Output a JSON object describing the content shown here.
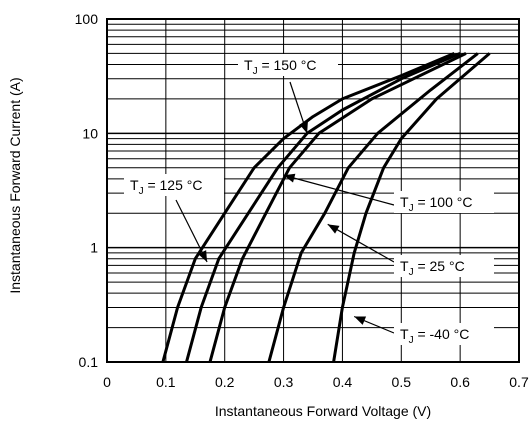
{
  "chart_data": {
    "type": "line",
    "title": "",
    "xlabel": "Instantaneous Forward Voltage (V)",
    "ylabel": "Instantaneous Forward Current (A)",
    "xlim": [
      0,
      0.7
    ],
    "ylim": [
      0.1,
      100
    ],
    "y_scale": "log",
    "grid": true,
    "x_ticks": [
      "0",
      "0.1",
      "0.2",
      "0.3",
      "0.4",
      "0.5",
      "0.6",
      "0.7"
    ],
    "y_ticks": [
      "0.1",
      "1",
      "10",
      "100"
    ],
    "series": [
      {
        "name": "T_J = 150 °C",
        "points": [
          [
            0.095,
            0.1
          ],
          [
            0.12,
            0.3
          ],
          [
            0.15,
            0.8
          ],
          [
            0.2,
            2
          ],
          [
            0.25,
            5
          ],
          [
            0.3,
            9
          ],
          [
            0.35,
            14
          ],
          [
            0.4,
            20
          ],
          [
            0.5,
            32
          ],
          [
            0.59,
            50
          ]
        ]
      },
      {
        "name": "T_J = 125 °C",
        "points": [
          [
            0.135,
            0.1
          ],
          [
            0.16,
            0.3
          ],
          [
            0.19,
            0.8
          ],
          [
            0.24,
            2
          ],
          [
            0.29,
            5
          ],
          [
            0.34,
            10
          ],
          [
            0.4,
            16
          ],
          [
            0.5,
            30
          ],
          [
            0.6,
            50
          ]
        ]
      },
      {
        "name": "T_J = 100 °C",
        "points": [
          [
            0.175,
            0.1
          ],
          [
            0.2,
            0.3
          ],
          [
            0.23,
            0.8
          ],
          [
            0.27,
            2
          ],
          [
            0.31,
            5
          ],
          [
            0.36,
            10
          ],
          [
            0.45,
            20
          ],
          [
            0.61,
            50
          ]
        ]
      },
      {
        "name": "T_J = 25 °C",
        "points": [
          [
            0.275,
            0.1
          ],
          [
            0.3,
            0.3
          ],
          [
            0.33,
            0.9
          ],
          [
            0.37,
            2
          ],
          [
            0.41,
            5
          ],
          [
            0.46,
            10
          ],
          [
            0.55,
            24
          ],
          [
            0.63,
            50
          ]
        ]
      },
      {
        "name": "T_J = -40 °C",
        "points": [
          [
            0.385,
            0.1
          ],
          [
            0.4,
            0.3
          ],
          [
            0.42,
            0.9
          ],
          [
            0.44,
            2
          ],
          [
            0.47,
            5
          ],
          [
            0.5,
            9
          ],
          [
            0.56,
            20
          ],
          [
            0.65,
            50
          ]
        ]
      }
    ],
    "annotations": [
      {
        "label": "T",
        "sub": "J",
        "rest": " = 150 °C",
        "series": 0,
        "target": [
          0.34,
          10
        ]
      },
      {
        "label": "T",
        "sub": "J",
        "rest": " = 125 °C",
        "series": 1,
        "target": [
          0.17,
          0.75
        ]
      },
      {
        "label": "T",
        "sub": "J",
        "rest": " = 100 °C",
        "series": 2,
        "target": [
          0.3,
          4.3
        ]
      },
      {
        "label": "T",
        "sub": "J",
        "rest": " = 25 °C",
        "series": 3,
        "target": [
          0.375,
          1.6
        ]
      },
      {
        "label": "T",
        "sub": "J",
        "rest": " = -40 °C",
        "series": 4,
        "target": [
          0.42,
          0.25
        ]
      }
    ]
  }
}
